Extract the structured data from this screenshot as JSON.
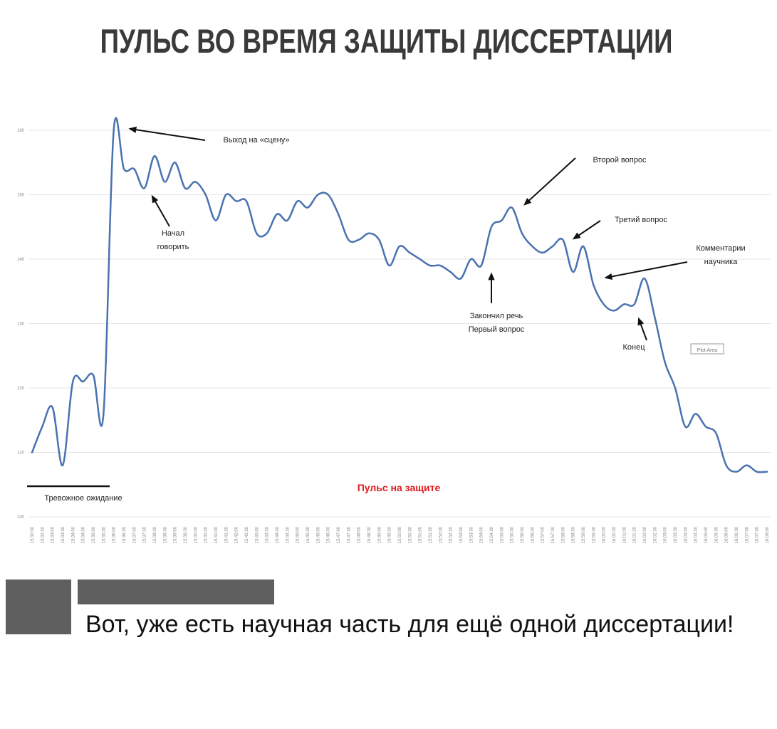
{
  "title": "ПУЛЬС ВО ВРЕМЯ ЗАЩИТЫ ДИССЕРТАЦИИ",
  "chart_data": {
    "type": "line",
    "title": "Пульс на защите",
    "xlabel": "",
    "ylabel": "",
    "ylim": [
      100,
      160
    ],
    "yticks": [
      100,
      110,
      120,
      130,
      140,
      150,
      160
    ],
    "grid": true,
    "line_color": "#4a72b0",
    "title_color": "#e0191b",
    "x": [
      "15:32:00",
      "15:32:30",
      "15:33:00",
      "15:33:30",
      "15:34:00",
      "15:34:30",
      "15:35:00",
      "15:35:30",
      "15:36:00",
      "15:36:30",
      "15:37:00",
      "15:37:30",
      "15:38:00",
      "15:38:30",
      "15:39:00",
      "15:39:30",
      "15:40:00",
      "15:40:30",
      "15:41:00",
      "15:41:30",
      "15:42:00",
      "15:42:30",
      "15:43:00",
      "15:43:30",
      "15:44:00",
      "15:44:30",
      "15:45:00",
      "15:45:30",
      "15:46:00",
      "15:46:30",
      "15:47:00",
      "15:47:30",
      "15:48:00",
      "15:48:30",
      "15:49:00",
      "15:49:30",
      "15:50:00",
      "15:50:30",
      "15:51:00",
      "15:51:30",
      "15:52:00",
      "15:52:30",
      "15:53:00",
      "15:53:30",
      "15:54:00",
      "15:54:30",
      "15:55:00",
      "15:55:30",
      "15:56:00",
      "15:56:30",
      "15:57:00",
      "15:57:30",
      "15:58:00",
      "15:58:30",
      "15:59:00",
      "15:59:30",
      "16:00:00",
      "16:00:30",
      "16:01:00",
      "16:01:30",
      "16:02:00",
      "16:02:30",
      "16:03:00",
      "16:03:30",
      "16:04:00",
      "16:04:30",
      "16:05:00",
      "16:05:30",
      "16:06:00",
      "16:06:30",
      "16:07:00",
      "16:07:30",
      "16:08:00"
    ],
    "series": [
      {
        "values": [
          110,
          114,
          117,
          108,
          121,
          121,
          122,
          116,
          160,
          154,
          154,
          151,
          156,
          152,
          155,
          151,
          152,
          150,
          146,
          150,
          149,
          149,
          144,
          144,
          147,
          146,
          149,
          148,
          150,
          150,
          147,
          143,
          143,
          144,
          143,
          139,
          142,
          141,
          140,
          139,
          139,
          138,
          137,
          140,
          139,
          145,
          146,
          148,
          144,
          142,
          141,
          142,
          143,
          138,
          142,
          136,
          133,
          132,
          133,
          133,
          137,
          131,
          124,
          120,
          114,
          116,
          114,
          113,
          108,
          107,
          108,
          107,
          107
        ]
      }
    ],
    "annotations": [
      {
        "text": "Выход на «сцену»",
        "x": "15:36:00"
      },
      {
        "text": "Начал говорить",
        "x": "15:37:30"
      },
      {
        "text": "Закончил речь Первый вопрос",
        "x": "15:54:30"
      },
      {
        "text": "Второй вопрос",
        "x": "15:56:00"
      },
      {
        "text": "Третий вопрос",
        "x": "15:58:00"
      },
      {
        "text": "Комментарии научника",
        "x": "15:59:00"
      },
      {
        "text": "Конец",
        "x": "16:01:00"
      },
      {
        "text": "Тревожное ожидание",
        "x": "15:32:00"
      }
    ],
    "plot_area_label": "Plot Area"
  },
  "post": {
    "comment": "Вот, уже есть научная часть для ещё одной диссертации!"
  }
}
